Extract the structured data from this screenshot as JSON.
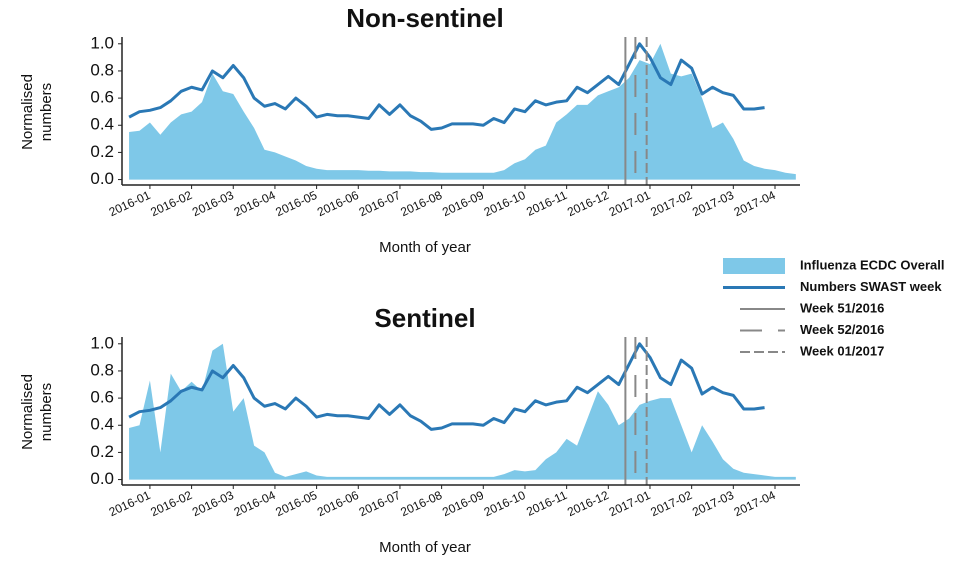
{
  "chart_data": [
    {
      "type": "area-line",
      "title": "Non-sentinel",
      "xlabel": "Month of year",
      "ylabel": [
        "Normalised",
        "numbers"
      ],
      "x": [
        0.5,
        0.75,
        1,
        1.25,
        1.5,
        1.75,
        2,
        2.25,
        2.5,
        2.75,
        3,
        3.25,
        3.5,
        3.75,
        4,
        4.25,
        4.5,
        4.75,
        5,
        5.25,
        5.5,
        5.75,
        6,
        6.25,
        6.5,
        6.75,
        7,
        7.25,
        7.5,
        7.75,
        8,
        8.25,
        8.5,
        8.75,
        9,
        9.25,
        9.5,
        9.75,
        10,
        10.25,
        10.5,
        10.75,
        11,
        11.25,
        11.5,
        11.75,
        12,
        12.25,
        12.5,
        12.75,
        13,
        13.25,
        13.5,
        13.75,
        14,
        14.25,
        14.5,
        14.75,
        15,
        15.25,
        15.5,
        15.75,
        16,
        16.25,
        16.5
      ],
      "series": [
        {
          "name": "Influenza ECDC Overall",
          "kind": "area",
          "color": "#7ec8e8",
          "values": [
            0.35,
            0.36,
            0.42,
            0.33,
            0.42,
            0.48,
            0.5,
            0.57,
            0.78,
            0.65,
            0.63,
            0.5,
            0.38,
            0.22,
            0.2,
            0.17,
            0.14,
            0.1,
            0.08,
            0.07,
            0.07,
            0.07,
            0.07,
            0.065,
            0.065,
            0.06,
            0.06,
            0.06,
            0.055,
            0.055,
            0.05,
            0.05,
            0.05,
            0.05,
            0.05,
            0.05,
            0.07,
            0.12,
            0.15,
            0.22,
            0.25,
            0.42,
            0.48,
            0.55,
            0.55,
            0.62,
            0.65,
            0.68,
            0.75,
            0.88,
            0.85,
            1.0,
            0.78,
            0.76,
            0.78,
            0.6,
            0.38,
            0.42,
            0.3,
            0.14,
            0.1,
            0.08,
            0.07,
            0.05,
            0.04
          ]
        },
        {
          "name": "Numbers SWAST week",
          "kind": "line",
          "color": "#2a78b5",
          "values": [
            0.46,
            0.5,
            0.51,
            0.53,
            0.58,
            0.65,
            0.68,
            0.66,
            0.8,
            0.75,
            0.84,
            0.75,
            0.6,
            0.54,
            0.56,
            0.52,
            0.6,
            0.54,
            0.46,
            0.48,
            0.47,
            0.47,
            0.46,
            0.45,
            0.55,
            0.48,
            0.55,
            0.47,
            0.43,
            0.37,
            0.38,
            0.41,
            0.41,
            0.41,
            0.4,
            0.45,
            0.42,
            0.52,
            0.5,
            0.58,
            0.55,
            0.57,
            0.58,
            0.68,
            0.64,
            0.7,
            0.76,
            0.7,
            0.85,
            1.0,
            0.9,
            0.75,
            0.7,
            0.88,
            0.82,
            0.63,
            0.68,
            0.64,
            0.62,
            0.52,
            0.52,
            0.53,
            null,
            null,
            null
          ]
        }
      ],
      "vlines": [
        {
          "name": "Week 51/2016",
          "x": 12.41,
          "style": "solid",
          "color": "#888888"
        },
        {
          "name": "Week 52/2016",
          "x": 12.65,
          "style": "loose-dash",
          "color": "#888888"
        },
        {
          "name": "Week 01/2017",
          "x": 12.92,
          "style": "dash",
          "color": "#888888"
        }
      ],
      "xlim": [
        0.33,
        16.6
      ],
      "xticks": [
        {
          "value": 1,
          "label": "2016-01"
        },
        {
          "value": 2,
          "label": "2016-02"
        },
        {
          "value": 3,
          "label": "2016-03"
        },
        {
          "value": 4,
          "label": "2016-04"
        },
        {
          "value": 5,
          "label": "2016-05"
        },
        {
          "value": 6,
          "label": "2016-06"
        },
        {
          "value": 7,
          "label": "2016-07"
        },
        {
          "value": 8,
          "label": "2016-08"
        },
        {
          "value": 9,
          "label": "2016-09"
        },
        {
          "value": 10,
          "label": "2016-10"
        },
        {
          "value": 11,
          "label": "2016-11"
        },
        {
          "value": 12,
          "label": "2016-12"
        },
        {
          "value": 13,
          "label": "2017-01"
        },
        {
          "value": 14,
          "label": "2017-02"
        },
        {
          "value": 15,
          "label": "2017-03"
        },
        {
          "value": 16,
          "label": "2017-04"
        }
      ],
      "ylim": [
        -0.04,
        1.05
      ],
      "yticks": [
        {
          "value": 0,
          "label": "0.0"
        },
        0.2,
        0.4,
        0.6,
        0.8,
        {
          "value": 1,
          "label": "1.0"
        }
      ],
      "legend": "right"
    },
    {
      "type": "area-line",
      "title": "Sentinel",
      "xlabel": "Month of year",
      "ylabel": [
        "Normalised",
        "numbers"
      ],
      "x": [
        0.5,
        0.75,
        1,
        1.25,
        1.5,
        1.75,
        2,
        2.25,
        2.5,
        2.75,
        3,
        3.25,
        3.5,
        3.75,
        4,
        4.25,
        4.5,
        4.75,
        5,
        5.25,
        5.5,
        5.75,
        6,
        6.25,
        6.5,
        6.75,
        7,
        7.25,
        7.5,
        7.75,
        8,
        8.25,
        8.5,
        8.75,
        9,
        9.25,
        9.5,
        9.75,
        10,
        10.25,
        10.5,
        10.75,
        11,
        11.25,
        11.5,
        11.75,
        12,
        12.25,
        12.5,
        12.75,
        13,
        13.25,
        13.5,
        13.75,
        14,
        14.25,
        14.5,
        14.75,
        15,
        15.25,
        15.5,
        15.75,
        16,
        16.25,
        16.5
      ],
      "series": [
        {
          "kind": "area",
          "color": "#7ec8e8",
          "values": [
            0.38,
            0.4,
            0.73,
            0.2,
            0.78,
            0.65,
            0.72,
            0.65,
            0.95,
            1.0,
            0.5,
            0.6,
            0.25,
            0.2,
            0.05,
            0.02,
            0.04,
            0.06,
            0.03,
            0.02,
            0.02,
            0.02,
            0.02,
            0.02,
            0.02,
            0.02,
            0.02,
            0.02,
            0.02,
            0.02,
            0.02,
            0.02,
            0.02,
            0.02,
            0.02,
            0.02,
            0.04,
            0.07,
            0.06,
            0.07,
            0.15,
            0.2,
            0.3,
            0.25,
            0.45,
            0.65,
            0.55,
            0.4,
            0.45,
            0.55,
            0.58,
            0.6,
            0.6,
            0.4,
            0.2,
            0.4,
            0.28,
            0.15,
            0.08,
            0.05,
            0.04,
            0.03,
            0.02,
            0.02,
            0.02
          ]
        },
        {
          "kind": "line",
          "color": "#2a78b5",
          "values": [
            0.46,
            0.5,
            0.51,
            0.53,
            0.58,
            0.65,
            0.68,
            0.66,
            0.8,
            0.75,
            0.84,
            0.75,
            0.6,
            0.54,
            0.56,
            0.52,
            0.6,
            0.54,
            0.46,
            0.48,
            0.47,
            0.47,
            0.46,
            0.45,
            0.55,
            0.48,
            0.55,
            0.47,
            0.43,
            0.37,
            0.38,
            0.41,
            0.41,
            0.41,
            0.4,
            0.45,
            0.42,
            0.52,
            0.5,
            0.58,
            0.55,
            0.57,
            0.58,
            0.68,
            0.64,
            0.7,
            0.76,
            0.7,
            0.85,
            1.0,
            0.9,
            0.75,
            0.7,
            0.88,
            0.82,
            0.63,
            0.68,
            0.64,
            0.62,
            0.52,
            0.52,
            0.53,
            null,
            null,
            null
          ]
        }
      ],
      "vlines": [
        {
          "x": 12.41,
          "style": "solid",
          "color": "#888888"
        },
        {
          "x": 12.65,
          "style": "loose-dash",
          "color": "#888888"
        },
        {
          "x": 12.92,
          "style": "dash",
          "color": "#888888"
        }
      ],
      "xlim": [
        0.33,
        16.6
      ],
      "xticks": [
        {
          "value": 1,
          "label": "2016-01"
        },
        {
          "value": 2,
          "label": "2016-02"
        },
        {
          "value": 3,
          "label": "2016-03"
        },
        {
          "value": 4,
          "label": "2016-04"
        },
        {
          "value": 5,
          "label": "2016-05"
        },
        {
          "value": 6,
          "label": "2016-06"
        },
        {
          "value": 7,
          "label": "2016-07"
        },
        {
          "value": 8,
          "label": "2016-08"
        },
        {
          "value": 9,
          "label": "2016-09"
        },
        {
          "value": 10,
          "label": "2016-10"
        },
        {
          "value": 11,
          "label": "2016-11"
        },
        {
          "value": 12,
          "label": "2016-12"
        },
        {
          "value": 13,
          "label": "2017-01"
        },
        {
          "value": 14,
          "label": "2017-02"
        },
        {
          "value": 15,
          "label": "2017-03"
        },
        {
          "value": 16,
          "label": "2017-04"
        }
      ],
      "ylim": [
        -0.04,
        1.05
      ],
      "yticks": [
        {
          "value": 0,
          "label": "0.0"
        },
        0.2,
        0.4,
        0.6,
        0.8,
        {
          "value": 1,
          "label": "1.0"
        }
      ]
    }
  ]
}
